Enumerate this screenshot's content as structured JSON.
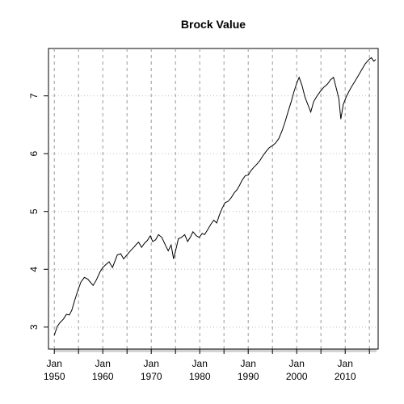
{
  "chart_data": {
    "type": "line",
    "title": "Brock Value",
    "xlabel": "",
    "ylabel": "",
    "x_ticks": [
      {
        "month": "Jan",
        "year": "1950",
        "value": 1950
      },
      {
        "month": "Jan",
        "year": "1960",
        "value": 1960
      },
      {
        "month": "Jan",
        "year": "1970",
        "value": 1970
      },
      {
        "month": "Jan",
        "year": "1980",
        "value": 1980
      },
      {
        "month": "Jan",
        "year": "1990",
        "value": 1990
      },
      {
        "month": "Jan",
        "year": "2000",
        "value": 2000
      },
      {
        "month": "Jan",
        "year": "2010",
        "value": 2010
      }
    ],
    "y_ticks": [
      "3",
      "4",
      "5",
      "6",
      "7"
    ],
    "xlim": [
      1948.8,
      2016.8
    ],
    "ylim": [
      2.62,
      7.82
    ],
    "grid": true,
    "vertical_reference_years": [
      1950,
      1955,
      1960,
      1965,
      1970,
      1975,
      1980,
      1985,
      1990,
      1995,
      2000,
      2005,
      2010,
      2015
    ],
    "series": [
      {
        "x": [
          1950.0,
          1950.6,
          1951.2,
          1951.9,
          1952.5,
          1953.1,
          1953.6,
          1954.2,
          1954.8,
          1955.5,
          1956.2,
          1956.9,
          1957.4,
          1958.0,
          1958.7,
          1959.4,
          1960.0,
          1960.6,
          1961.3,
          1962.0,
          1962.5,
          1963.0,
          1963.7,
          1964.3,
          1965.0,
          1965.7,
          1966.4,
          1966.9,
          1967.4,
          1968.0,
          1968.6,
          1969.2,
          1969.8,
          1970.3,
          1970.9,
          1971.5,
          1972.2,
          1972.9,
          1973.5,
          1974.1,
          1974.6,
          1975.1,
          1975.6,
          1976.2,
          1976.9,
          1977.5,
          1978.1,
          1978.6,
          1979.3,
          1979.9,
          1980.5,
          1981.0,
          1981.6,
          1982.3,
          1982.9,
          1983.5,
          1984.1,
          1984.6,
          1985.2,
          1985.9,
          1986.5,
          1987.1,
          1987.7,
          1988.2,
          1988.8,
          1989.4,
          1990.0,
          1990.5,
          1991.1,
          1991.8,
          1992.4,
          1993.0,
          1993.6,
          1994.3,
          1995.0,
          1995.6,
          1996.3,
          1997.0,
          1997.6,
          1998.2,
          1998.8,
          1999.4,
          2000.0,
          2000.5,
          2001.1,
          2001.7,
          2002.3,
          2002.9,
          2003.5,
          2004.2,
          2004.9,
          2005.6,
          2006.3,
          2007.0,
          2007.6,
          2008.2,
          2008.7,
          2009.1,
          2009.6,
          2010.2,
          2010.8,
          2011.4,
          2012.0,
          2012.7,
          2013.4,
          2014.1,
          2014.8,
          2015.4,
          2015.9,
          2016.3
        ],
        "y": [
          2.86,
          3.01,
          3.08,
          3.14,
          3.22,
          3.21,
          3.29,
          3.46,
          3.62,
          3.78,
          3.86,
          3.83,
          3.78,
          3.72,
          3.82,
          3.95,
          4.03,
          4.08,
          4.13,
          4.03,
          4.14,
          4.25,
          4.27,
          4.18,
          4.25,
          4.32,
          4.38,
          4.43,
          4.47,
          4.38,
          4.45,
          4.5,
          4.58,
          4.48,
          4.51,
          4.6,
          4.55,
          4.42,
          4.32,
          4.42,
          4.18,
          4.35,
          4.53,
          4.55,
          4.6,
          4.48,
          4.56,
          4.65,
          4.58,
          4.55,
          4.62,
          4.6,
          4.68,
          4.78,
          4.85,
          4.8,
          4.95,
          5.05,
          5.15,
          5.18,
          5.24,
          5.32,
          5.38,
          5.45,
          5.55,
          5.62,
          5.63,
          5.7,
          5.76,
          5.82,
          5.88,
          5.96,
          6.03,
          6.1,
          6.14,
          6.18,
          6.26,
          6.4,
          6.55,
          6.72,
          6.88,
          7.06,
          7.22,
          7.32,
          7.18,
          6.98,
          6.85,
          6.72,
          6.9,
          7.0,
          7.08,
          7.15,
          7.2,
          7.28,
          7.32,
          7.12,
          6.95,
          6.6,
          6.85,
          6.98,
          7.08,
          7.17,
          7.25,
          7.35,
          7.45,
          7.55,
          7.62,
          7.66,
          7.6,
          7.63
        ]
      }
    ]
  }
}
